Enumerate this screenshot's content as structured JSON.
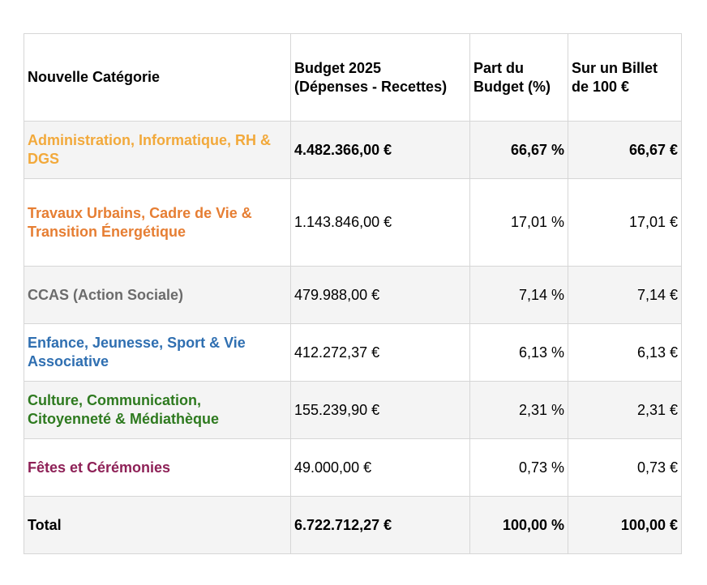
{
  "table": {
    "headers": {
      "category": "Nouvelle Catégorie",
      "budget_line1": "Budget 2025",
      "budget_line2": "(Dépenses - Recettes)",
      "share_line1": "Part du",
      "share_line2": "Budget (%)",
      "bill_line1": "Sur un Billet",
      "bill_line2": "de 100 €"
    },
    "rows": [
      {
        "category": "Administration, Informatique, RH & DGS",
        "budget": "4.482.366,00 €",
        "share": "66,67 %",
        "bill": "66,67 €",
        "color": "#f2a93b"
      },
      {
        "category": "Travaux Urbains, Cadre de Vie & Transition Énergétique",
        "budget": "1.143.846,00 €",
        "share": "17,01 %",
        "bill": "17,01 €",
        "color": "#e67e33"
      },
      {
        "category": "CCAS (Action Sociale)",
        "budget": "479.988,00 €",
        "share": "7,14 %",
        "bill": "7,14 €",
        "color": "#6b6b6b"
      },
      {
        "category": "Enfance, Jeunesse, Sport & Vie Associative",
        "budget": "412.272,37 €",
        "share": "6,13 %",
        "bill": "6,13 €",
        "color": "#2f6fb1"
      },
      {
        "category": "Culture, Communication, Citoyenneté & Médiathèque",
        "budget": "155.239,90 €",
        "share": "2,31 %",
        "bill": "2,31 €",
        "color": "#2e7a1f"
      },
      {
        "category": "Fêtes et Cérémonies",
        "budget": "49.000,00 €",
        "share": "0,73 %",
        "bill": "0,73 €",
        "color": "#8e2157"
      }
    ],
    "total": {
      "label": "Total",
      "budget": "6.722.712,27 €",
      "share": "100,00 %",
      "bill": "100,00 €"
    }
  }
}
